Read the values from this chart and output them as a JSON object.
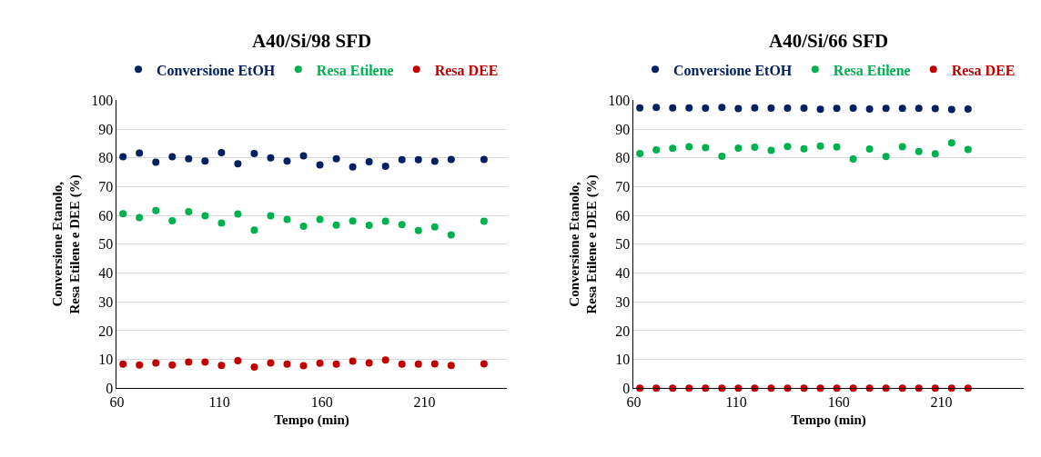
{
  "chart_data": [
    {
      "type": "scatter",
      "title": "A40/Si/98 SFD",
      "xlabel": "Tempo (min)",
      "ylabel": "Conversione Etanolo,\nResa Etilene e DEE (%)",
      "x": [
        63,
        71,
        79,
        87,
        95,
        103,
        111,
        119,
        127,
        135,
        143,
        151,
        159,
        167,
        175,
        183,
        191,
        199,
        207,
        215,
        223,
        239
      ],
      "series": [
        {
          "name": "Conversione EtOH",
          "color": "#002060",
          "values": [
            80.4,
            81.7,
            78.5,
            80.4,
            79.7,
            78.9,
            81.8,
            78.0,
            81.5,
            80.0,
            78.9,
            80.7,
            77.6,
            79.7,
            76.9,
            78.7,
            77.1,
            79.4,
            79.4,
            78.8,
            79.5,
            79.5
          ]
        },
        {
          "name": "Resa Etilene",
          "color": "#00b050",
          "values": [
            60.6,
            59.3,
            61.7,
            58.2,
            61.3,
            59.9,
            57.4,
            60.5,
            54.9,
            59.9,
            58.6,
            56.3,
            58.6,
            56.7,
            58.1,
            56.6,
            58.0,
            56.8,
            54.8,
            56.0,
            53.3,
            58.0
          ]
        },
        {
          "name": "Resa DEE",
          "color": "#c00000",
          "values": [
            8.4,
            8.1,
            8.8,
            8.1,
            9.1,
            9.1,
            7.9,
            9.6,
            7.4,
            8.8,
            8.4,
            7.8,
            8.7,
            8.4,
            9.4,
            8.8,
            9.8,
            8.4,
            8.4,
            8.5,
            7.9,
            8.5
          ]
        }
      ],
      "xlim": [
        60,
        250
      ],
      "xticks": [
        60,
        110,
        160,
        210
      ],
      "ylim": [
        0,
        100
      ],
      "yticks": [
        0,
        10,
        20,
        30,
        40,
        50,
        60,
        70,
        80,
        90,
        100
      ],
      "grid": "y",
      "legend": "top",
      "marker": "circle"
    },
    {
      "type": "scatter",
      "title": "A40/Si/66 SFD",
      "xlabel": "Tempo (min)",
      "ylabel": "Conversione Etanolo,\nResa Etilene e DEE (%)",
      "x": [
        63,
        71,
        79,
        87,
        95,
        103,
        111,
        119,
        127,
        135,
        143,
        151,
        159,
        167,
        175,
        183,
        191,
        199,
        207,
        215,
        223
      ],
      "series": [
        {
          "name": "Conversione EtOH",
          "color": "#002060",
          "values": [
            97.4,
            97.5,
            97.4,
            97.4,
            97.3,
            97.5,
            97.1,
            97.4,
            97.3,
            97.3,
            97.3,
            96.9,
            97.2,
            97.3,
            97.0,
            97.2,
            97.2,
            97.2,
            97.1,
            96.8,
            97.0
          ]
        },
        {
          "name": "Resa Etilene",
          "color": "#00b050",
          "values": [
            81.5,
            82.8,
            83.3,
            83.9,
            83.6,
            80.6,
            83.4,
            83.7,
            82.6,
            84.0,
            83.2,
            84.1,
            83.8,
            79.6,
            83.1,
            80.5,
            83.9,
            82.2,
            81.4,
            85.2,
            82.9
          ]
        },
        {
          "name": "Resa DEE",
          "color": "#c00000",
          "values": [
            0,
            0,
            0,
            0,
            0,
            0,
            0,
            0,
            0,
            0,
            0,
            0,
            0,
            0,
            0,
            0,
            0,
            0,
            0,
            0,
            0
          ]
        }
      ],
      "xlim": [
        60,
        250
      ],
      "xticks": [
        60,
        110,
        160,
        210
      ],
      "ylim": [
        0,
        100
      ],
      "yticks": [
        0,
        10,
        20,
        30,
        40,
        50,
        60,
        70,
        80,
        90,
        100
      ],
      "grid": "y",
      "legend": "top",
      "marker": "circle"
    }
  ]
}
